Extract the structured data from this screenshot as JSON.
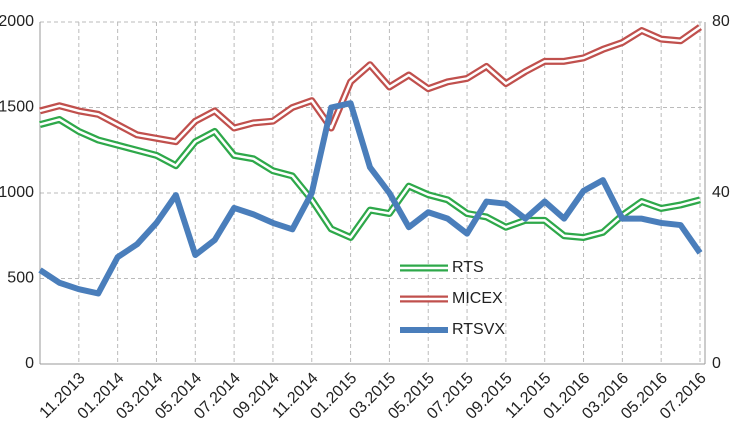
{
  "chart_data": {
    "type": "line",
    "categories": [
      null,
      null,
      "11.2013",
      null,
      "01.2014",
      null,
      "03.2014",
      null,
      "05.2014",
      null,
      "07.2014",
      null,
      "09.2014",
      null,
      "11.2014",
      null,
      "01.2015",
      null,
      "03.2015",
      null,
      "05.2015",
      null,
      "07.2015",
      null,
      "09.2015",
      null,
      "11.2015",
      null,
      "01.2016",
      null,
      "03.2016",
      null,
      "05.2016",
      null,
      "07.2016"
    ],
    "series": [
      {
        "name": "RTS",
        "color": "#2ea84a",
        "style": "double",
        "axis": "y",
        "values": [
          1400,
          1430,
          1360,
          1310,
          1280,
          1250,
          1220,
          1160,
          1300,
          1360,
          1220,
          1200,
          1130,
          1100,
          960,
          790,
          740,
          900,
          880,
          1040,
          990,
          960,
          880,
          860,
          800,
          840,
          840,
          750,
          740,
          770,
          870,
          950,
          910,
          930,
          960
        ]
      },
      {
        "name": "MICEX",
        "color": "#c0504d",
        "style": "double",
        "axis": "y",
        "values": [
          1480,
          1510,
          1480,
          1460,
          1400,
          1340,
          1320,
          1300,
          1420,
          1480,
          1380,
          1410,
          1420,
          1500,
          1540,
          1380,
          1650,
          1750,
          1620,
          1690,
          1610,
          1650,
          1670,
          1740,
          1640,
          1710,
          1770,
          1770,
          1790,
          1840,
          1880,
          1950,
          1900,
          1890,
          1970
        ]
      },
      {
        "name": "RTSVX",
        "color": "#4a7ebb",
        "style": "solid",
        "axis": "y2",
        "values": [
          22,
          19,
          17.5,
          16.5,
          25,
          28,
          33,
          39.5,
          25.5,
          29,
          36.5,
          35,
          33,
          31.5,
          40,
          60,
          61,
          46,
          40,
          32,
          35.5,
          34,
          30.5,
          38,
          37.5,
          34,
          38,
          34,
          40.5,
          43,
          34,
          34,
          33,
          32.5,
          26
        ]
      }
    ],
    "ylim": [
      0,
      2000
    ],
    "yticks": [
      0,
      500,
      1000,
      1500,
      2000
    ],
    "y2lim": [
      0,
      80
    ],
    "y2ticks": [
      0,
      40,
      80
    ],
    "grid": true,
    "legend_position": "center"
  }
}
